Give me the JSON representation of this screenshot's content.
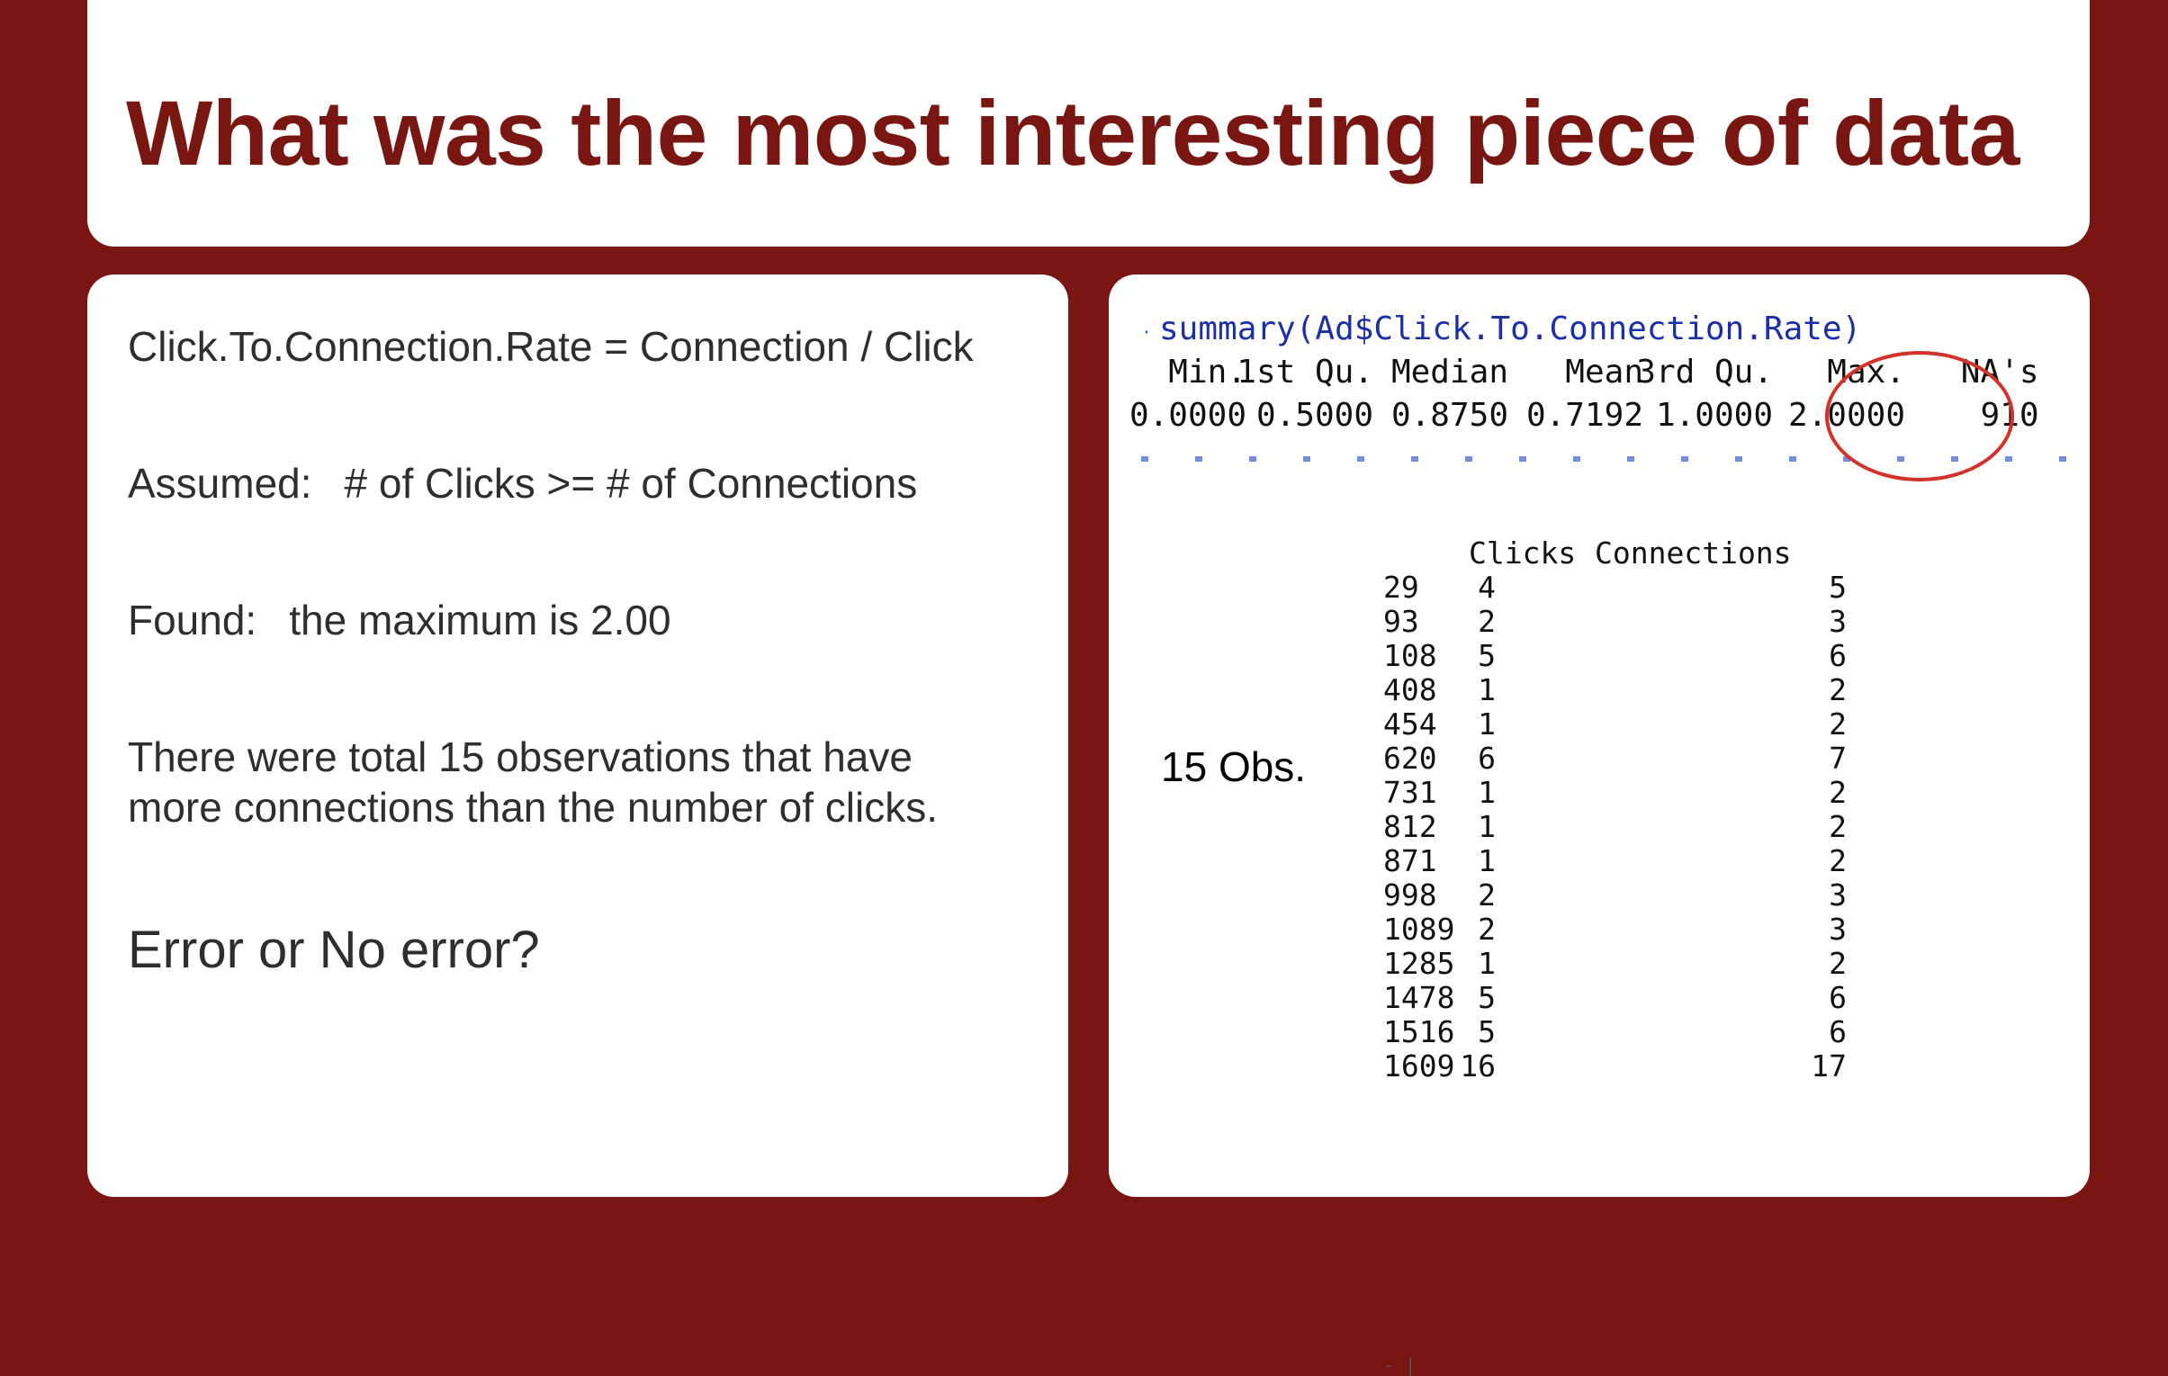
{
  "title": "What was the most interesting piece of data",
  "left_panel": {
    "formula": "Click.To.Connection.Rate = Connection / Click",
    "assumed_label": "Assumed:",
    "assumed_text": "# of Clicks >= # of Connections",
    "found_label": "Found:",
    "found_text": "the maximum is 2.00",
    "observation_line1": "There were total 15 observations that have",
    "observation_line2": "more connections than the number of clicks.",
    "question": "Error or No error?"
  },
  "right_panel": {
    "command": "summary(Ad$Click.To.Connection.Rate)",
    "summary_headers": [
      "Min.",
      "1st Qu.",
      "Median",
      "Mean",
      "3rd Qu.",
      "Max.",
      "NA's"
    ],
    "summary_values": [
      "0.0000",
      "0.5000",
      "0.8750",
      "0.7192",
      "1.0000",
      "2.0000",
      "910"
    ],
    "highlighted_stat": "Max.",
    "highlight_color": "#d4312a",
    "obs_label": "15 Obs.",
    "table": {
      "columns": [
        "Clicks",
        "Connections"
      ],
      "rows": [
        {
          "id": "29",
          "clicks": "4",
          "connections": "5"
        },
        {
          "id": "93",
          "clicks": "2",
          "connections": "3"
        },
        {
          "id": "108",
          "clicks": "5",
          "connections": "6"
        },
        {
          "id": "408",
          "clicks": "1",
          "connections": "2"
        },
        {
          "id": "454",
          "clicks": "1",
          "connections": "2"
        },
        {
          "id": "620",
          "clicks": "6",
          "connections": "7"
        },
        {
          "id": "731",
          "clicks": "1",
          "connections": "2"
        },
        {
          "id": "812",
          "clicks": "1",
          "connections": "2"
        },
        {
          "id": "871",
          "clicks": "1",
          "connections": "2"
        },
        {
          "id": "998",
          "clicks": "2",
          "connections": "3"
        },
        {
          "id": "1089",
          "clicks": "2",
          "connections": "3"
        },
        {
          "id": "1285",
          "clicks": "1",
          "connections": "2"
        },
        {
          "id": "1478",
          "clicks": "5",
          "connections": "6"
        },
        {
          "id": "1516",
          "clicks": "5",
          "connections": "6"
        },
        {
          "id": "1609",
          "clicks": "16",
          "connections": "17"
        }
      ]
    }
  },
  "colors": {
    "background": "#7a1611",
    "title": "#7a1611",
    "command": "#1a2fa8",
    "card": "#ffffff"
  }
}
